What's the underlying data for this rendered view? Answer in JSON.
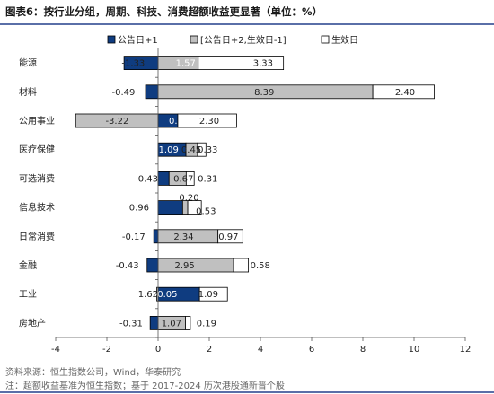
{
  "title": "图表6：按行业分组，周期、科技、消费超额收益更显著（单位：%）",
  "footer": {
    "source": "资料来源：恒生指数公司，Wind，华泰研究",
    "note": "注：超额收益基准为恒生指数；基于 2017-2024 历次港股通新晋个股"
  },
  "colors": {
    "series1": "#0f3c80",
    "series2": "#c0c0c0",
    "series3": "#ffffff",
    "stroke": "#000000",
    "title_rule": "#5a6fa8"
  },
  "chart_data": {
    "type": "bar",
    "orientation": "horizontal",
    "stacked": true,
    "categories": [
      "能源",
      "材料",
      "公用事业",
      "医疗保健",
      "可选消费",
      "信息技术",
      "日常消费",
      "金融",
      "工业",
      "房地产"
    ],
    "series": [
      {
        "name": "公告日+1",
        "values": [
          -1.33,
          -0.49,
          0.77,
          1.09,
          0.43,
          0.96,
          -0.17,
          -0.43,
          1.62,
          -0.31
        ]
      },
      {
        "name": "[公告日+2,生效日-1]",
        "values": [
          1.57,
          8.39,
          -3.22,
          0.45,
          0.67,
          0.2,
          2.34,
          2.95,
          -0.05,
          1.07
        ]
      },
      {
        "name": "生效日",
        "values": [
          3.33,
          2.4,
          2.3,
          0.33,
          0.31,
          0.53,
          0.97,
          0.58,
          1.09,
          0.19
        ]
      }
    ],
    "value_labels": [
      [
        "-1.33",
        "1.57",
        "3.33"
      ],
      [
        "-0.49",
        "8.39",
        "2.40"
      ],
      [
        "0.77",
        "-3.22",
        "2.30"
      ],
      [
        "1.09",
        "0.45",
        "0.33"
      ],
      [
        "0.43",
        "0.67",
        "0.31"
      ],
      [
        "0.96",
        "0.20",
        "0.53"
      ],
      [
        "-0.17",
        "2.34",
        "0.97"
      ],
      [
        "-0.43",
        "2.95",
        "0.58"
      ],
      [
        "1.62",
        "-0.05",
        "1.09"
      ],
      [
        "-0.31",
        "1.07",
        "0.19"
      ]
    ],
    "xlim": [
      -4,
      12
    ],
    "xticks": [
      -4,
      -2,
      0,
      2,
      4,
      6,
      8,
      10,
      12
    ],
    "grid": false,
    "legend_position": "top"
  }
}
